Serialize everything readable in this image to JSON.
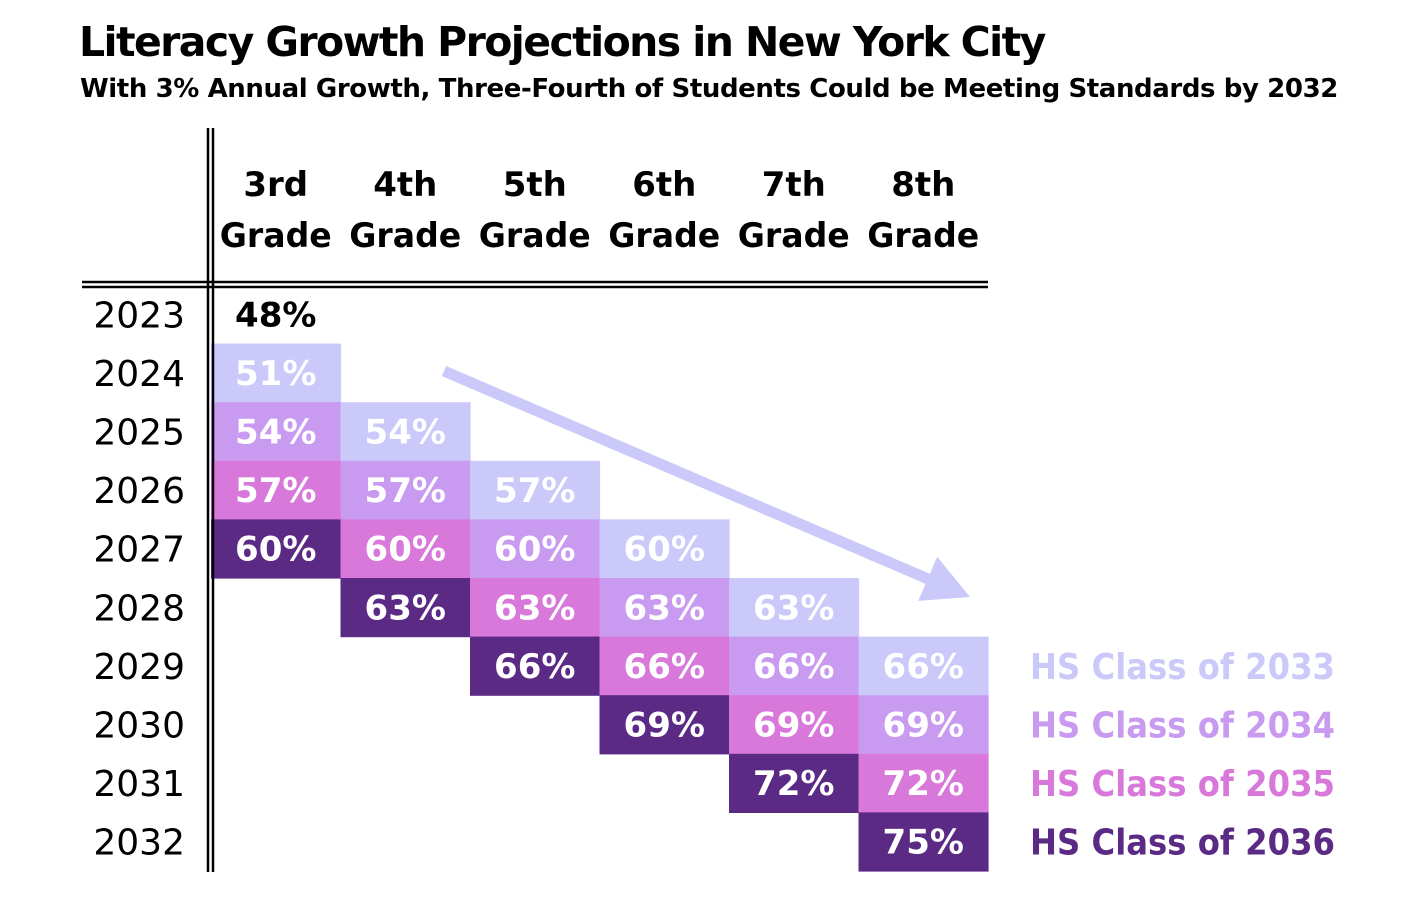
{
  "title": "Literacy Growth Projections in New York City",
  "subtitle": "With 3% Annual Growth, Three-Fourth of Students Could be Meeting Standards by 2032",
  "colors": {
    "cohort_2033": "#cbc8fa",
    "cohort_2034": "#c99bf0",
    "cohort_2035": "#d878da",
    "cohort_2036": "#5a2a85",
    "arrow": "#cbc8fa",
    "text_on_cell": "#ffffff"
  },
  "chart_data": {
    "type": "table",
    "columns": [
      {
        "line1": "3rd",
        "line2": "Grade"
      },
      {
        "line1": "4th",
        "line2": "Grade"
      },
      {
        "line1": "5th",
        "line2": "Grade"
      },
      {
        "line1": "6th",
        "line2": "Grade"
      },
      {
        "line1": "7th",
        "line2": "Grade"
      },
      {
        "line1": "8th",
        "line2": "Grade"
      }
    ],
    "rows": [
      "2023",
      "2024",
      "2025",
      "2026",
      "2027",
      "2028",
      "2029",
      "2030",
      "2031",
      "2032"
    ],
    "cells": [
      {
        "row": 0,
        "col": 0,
        "text": "48%",
        "value": 48,
        "cohort": null
      },
      {
        "row": 1,
        "col": 0,
        "text": "51%",
        "value": 51,
        "cohort": 0
      },
      {
        "row": 2,
        "col": 0,
        "text": "54%",
        "value": 54,
        "cohort": 1
      },
      {
        "row": 2,
        "col": 1,
        "text": "54%",
        "value": 54,
        "cohort": 0
      },
      {
        "row": 3,
        "col": 0,
        "text": "57%",
        "value": 57,
        "cohort": 2
      },
      {
        "row": 3,
        "col": 1,
        "text": "57%",
        "value": 57,
        "cohort": 1
      },
      {
        "row": 3,
        "col": 2,
        "text": "57%",
        "value": 57,
        "cohort": 0
      },
      {
        "row": 4,
        "col": 0,
        "text": "60%",
        "value": 60,
        "cohort": 3
      },
      {
        "row": 4,
        "col": 1,
        "text": "60%",
        "value": 60,
        "cohort": 2
      },
      {
        "row": 4,
        "col": 2,
        "text": "60%",
        "value": 60,
        "cohort": 1
      },
      {
        "row": 4,
        "col": 3,
        "text": "60%",
        "value": 60,
        "cohort": 0
      },
      {
        "row": 5,
        "col": 1,
        "text": "63%",
        "value": 63,
        "cohort": 3
      },
      {
        "row": 5,
        "col": 2,
        "text": "63%",
        "value": 63,
        "cohort": 2
      },
      {
        "row": 5,
        "col": 3,
        "text": "63%",
        "value": 63,
        "cohort": 1
      },
      {
        "row": 5,
        "col": 4,
        "text": "63%",
        "value": 63,
        "cohort": 0
      },
      {
        "row": 6,
        "col": 2,
        "text": "66%",
        "value": 66,
        "cohort": 3
      },
      {
        "row": 6,
        "col": 3,
        "text": "66%",
        "value": 66,
        "cohort": 2
      },
      {
        "row": 6,
        "col": 4,
        "text": "66%",
        "value": 66,
        "cohort": 1
      },
      {
        "row": 6,
        "col": 5,
        "text": "66%",
        "value": 66,
        "cohort": 0
      },
      {
        "row": 7,
        "col": 3,
        "text": "69%",
        "value": 69,
        "cohort": 3
      },
      {
        "row": 7,
        "col": 4,
        "text": "69%",
        "value": 69,
        "cohort": 2
      },
      {
        "row": 7,
        "col": 5,
        "text": "69%",
        "value": 69,
        "cohort": 1
      },
      {
        "row": 8,
        "col": 4,
        "text": "72%",
        "value": 72,
        "cohort": 3
      },
      {
        "row": 8,
        "col": 5,
        "text": "72%",
        "value": 72,
        "cohort": 2
      },
      {
        "row": 9,
        "col": 5,
        "text": "75%",
        "value": 75,
        "cohort": 3
      }
    ],
    "cohorts": [
      {
        "label": "HS Class of 2033",
        "color": "#cbc8fa"
      },
      {
        "label": "HS Class of 2034",
        "color": "#c99bf0"
      },
      {
        "label": "HS Class of 2035",
        "color": "#d878da"
      },
      {
        "label": "HS Class of 2036",
        "color": "#5a2a85"
      }
    ]
  }
}
